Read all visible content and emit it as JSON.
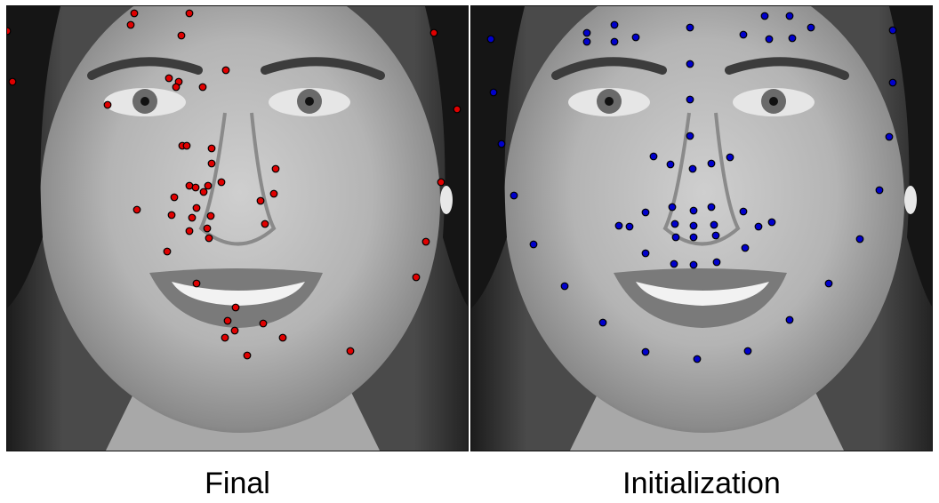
{
  "figure": {
    "left_caption": "Final",
    "right_caption": "Initialization"
  },
  "colors": {
    "final_marker": "#e00000",
    "init_marker": "#0000cc",
    "marker_edge": "#000000"
  }
}
